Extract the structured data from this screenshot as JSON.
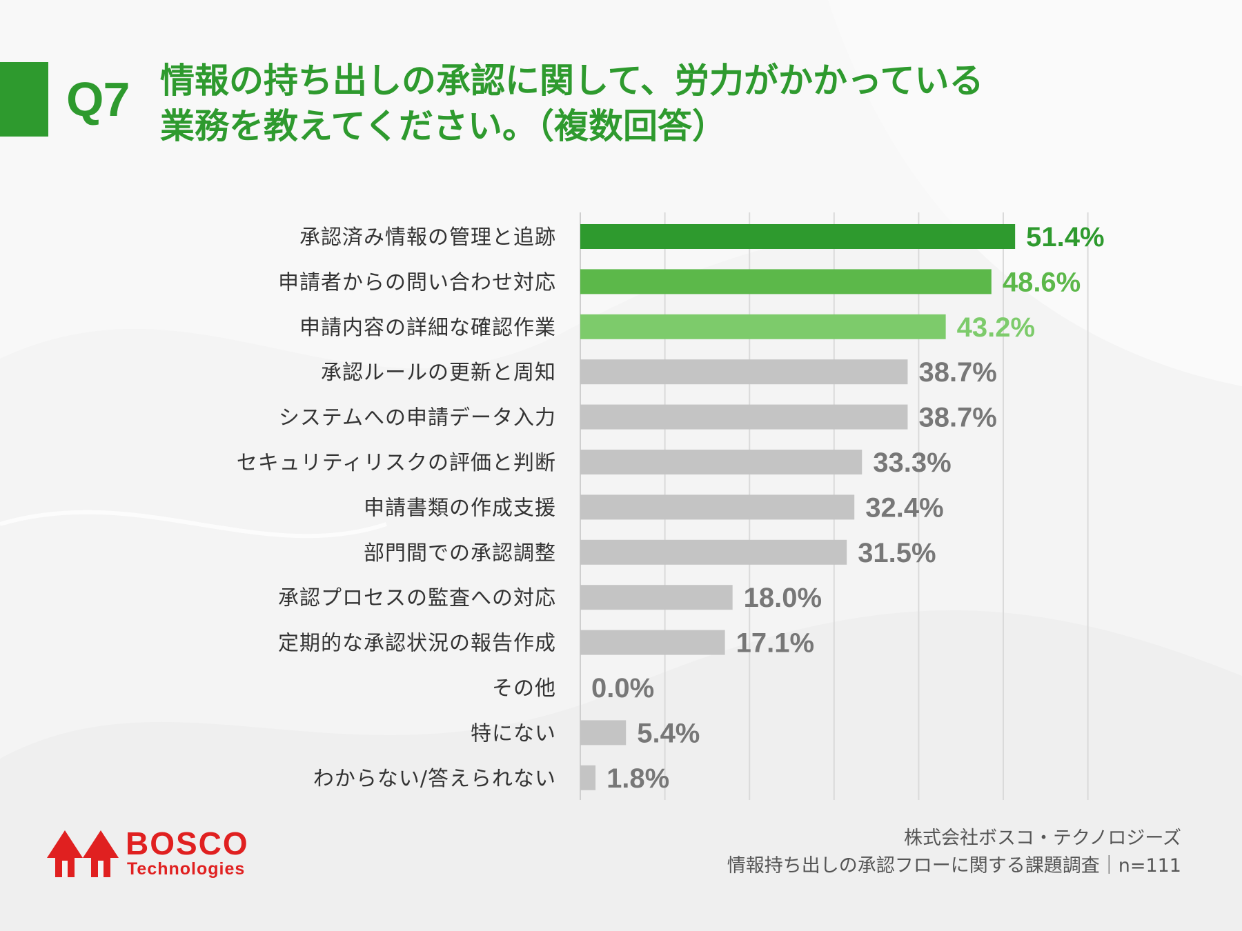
{
  "header": {
    "q_label": "Q7",
    "title_line1": "情報の持ち出しの承認に関して、労力がかかっている",
    "title_line2": "業務を教えてください。（複数回答）"
  },
  "colors": {
    "accent": "#2e9a2e",
    "highlight": [
      "#2e9a2e",
      "#5cb84a",
      "#7dcb6b"
    ],
    "bar_default": "#c4c4c4",
    "label_default": "#777777",
    "brand": "#e02020"
  },
  "chart_data": {
    "type": "bar",
    "orientation": "horizontal",
    "categories": [
      "承認済み情報の管理と追跡",
      "申請者からの問い合わせ対応",
      "申請内容の詳細な確認作業",
      "承認ルールの更新と周知",
      "システムへの申請データ入力",
      "セキュリティリスクの評価と判断",
      "申請書類の作成支援",
      "部門間での承認調整",
      "承認プロセスの監査への対応",
      "定期的な承認状況の報告作成",
      "その他",
      "特にない",
      "わからない/答えられない"
    ],
    "values": [
      51.4,
      48.6,
      43.2,
      38.7,
      38.7,
      33.3,
      32.4,
      31.5,
      18.0,
      17.1,
      0.0,
      5.4,
      1.8
    ],
    "value_labels": [
      "51.4%",
      "48.6%",
      "43.2%",
      "38.7%",
      "38.7%",
      "33.3%",
      "32.4%",
      "31.5%",
      "18.0%",
      "17.1%",
      "0.0%",
      "5.4%",
      "1.8%"
    ],
    "unit": "%",
    "xlim": [
      0,
      60
    ],
    "grid_step": 10,
    "grid": true,
    "highlight_count": 3
  },
  "logo": {
    "name": "BOSCO",
    "sub": "Technologies"
  },
  "footer": {
    "company": "株式会社ボスコ・テクノロジーズ",
    "survey": "情報持ち出しの承認フローに関する課題調査｜n=111"
  }
}
